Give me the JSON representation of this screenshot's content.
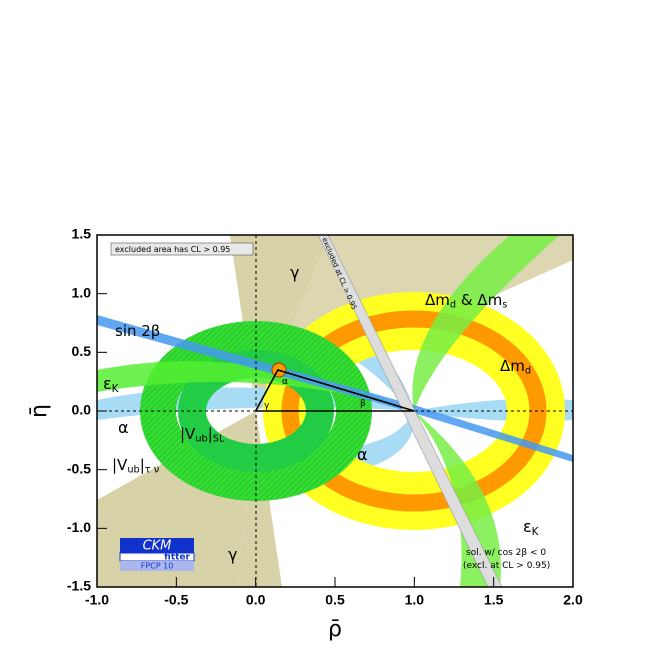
{
  "chart_data": {
    "type": "ckm",
    "xlabel": "ρ̄",
    "ylabel": "η̄",
    "xlim": [
      -1,
      2
    ],
    "ylim": [
      -1.5,
      1.5
    ],
    "xticks": [
      {
        "value": -1,
        "label": "-1.0"
      },
      -0.5,
      {
        "value": 0,
        "label": "0.0"
      },
      0.5,
      {
        "value": 1,
        "label": "1.0"
      },
      1.5,
      {
        "value": 2,
        "label": "2.0"
      }
    ],
    "yticks": [
      -1.5,
      {
        "value": -1,
        "label": "-1.0"
      },
      -0.5,
      {
        "value": 0,
        "label": "0.0"
      },
      0.5,
      {
        "value": 1,
        "label": "1.0"
      },
      1.5
    ],
    "triangle": {
      "x": [
        0,
        1,
        0.14,
        0
      ],
      "y": [
        0,
        0,
        0.35,
        0
      ]
    },
    "annotations": [
      [
        {
          "text": "excluded area has CL > 0.95"
        }
      ],
      [
        {
          "text": "γ"
        }
      ],
      [
        {
          "text": "Δm",
          "sub": "d"
        },
        {
          "text": " & Δm",
          "sub": "s"
        }
      ],
      [
        {
          "text": "Δm",
          "sub": "d"
        }
      ],
      [
        {
          "text": "sin 2β"
        }
      ],
      [
        {
          "text": "ε",
          "sub": "K"
        }
      ],
      [
        {
          "text": "α"
        }
      ],
      [
        {
          "text": "|V",
          "sub": "ub"
        },
        {
          "text": "|",
          "sub": "SL"
        }
      ],
      [
        {
          "text": "|V",
          "sub": "ub"
        },
        {
          "text": "|",
          "sub": "τ ν"
        }
      ],
      [
        {
          "text": "α"
        }
      ],
      [
        {
          "text": "ε",
          "sub": "K"
        }
      ],
      [
        {
          "text": "γ"
        }
      ],
      [
        {
          "text": "sol. w/ cos 2β < 0"
        }
      ],
      [
        {
          "text": "(excl. at CL > 0.95)"
        }
      ],
      [
        {
          "text": "excluded at CL > 0.95"
        }
      ],
      [
        {
          "text": "α"
        }
      ],
      [
        {
          "text": "γ"
        }
      ],
      [
        {
          "text": "β"
        }
      ]
    ],
    "logo": {
      "name": "CKM",
      "sub": "fitter",
      "conf": "FPCP 10"
    }
  }
}
